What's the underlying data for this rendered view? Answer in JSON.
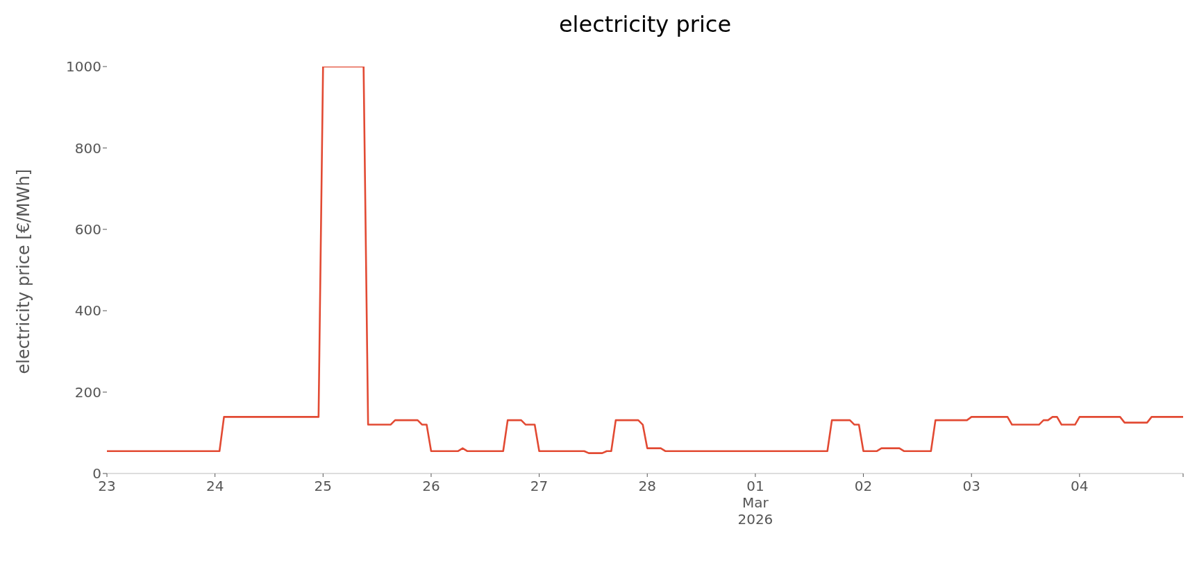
{
  "chart_data": {
    "type": "line",
    "title": "electricity price",
    "ylabel": "electricity price [€/MWh]",
    "x": [
      "2026-02-23T00:00",
      "2026-02-24T01:00",
      "2026-02-24T02:00",
      "2026-02-24T23:00",
      "2026-02-25T00:00",
      "2026-02-25T09:00",
      "2026-02-25T10:00",
      "2026-02-25T15:00",
      "2026-02-25T16:00",
      "2026-02-25T21:00",
      "2026-02-25T22:00",
      "2026-02-25T23:00",
      "2026-02-26T00:00",
      "2026-02-26T06:00",
      "2026-02-26T07:00",
      "2026-02-26T08:00",
      "2026-02-26T16:00",
      "2026-02-26T17:00",
      "2026-02-26T20:00",
      "2026-02-26T21:00",
      "2026-02-26T23:00",
      "2026-02-27T00:00",
      "2026-02-27T10:00",
      "2026-02-27T11:00",
      "2026-02-27T14:00",
      "2026-02-27T15:00",
      "2026-02-27T16:00",
      "2026-02-27T17:00",
      "2026-02-27T22:00",
      "2026-02-27T23:00",
      "2026-02-28T00:00",
      "2026-02-28T03:00",
      "2026-02-28T04:00",
      "2026-03-01T16:00",
      "2026-03-01T17:00",
      "2026-03-01T21:00",
      "2026-03-01T22:00",
      "2026-03-01T23:00",
      "2026-03-02T00:00",
      "2026-03-02T03:00",
      "2026-03-02T04:00",
      "2026-03-02T08:00",
      "2026-03-02T09:00",
      "2026-03-02T15:00",
      "2026-03-02T16:00",
      "2026-03-02T23:00",
      "2026-03-03T00:00",
      "2026-03-03T08:00",
      "2026-03-03T09:00",
      "2026-03-03T15:00",
      "2026-03-03T16:00",
      "2026-03-03T17:00",
      "2026-03-03T18:00",
      "2026-03-03T19:00",
      "2026-03-03T20:00",
      "2026-03-03T23:00",
      "2026-03-04T00:00",
      "2026-03-04T09:00",
      "2026-03-04T10:00",
      "2026-03-04T15:00",
      "2026-03-04T16:00",
      "2026-03-04T23:00"
    ],
    "series": [
      {
        "color": "#e24a33",
        "values": [
          55,
          55,
          139,
          139,
          1000,
          1000,
          120,
          120,
          131,
          131,
          120,
          120,
          55,
          55,
          62,
          55,
          55,
          131,
          131,
          120,
          120,
          55,
          55,
          50,
          50,
          55,
          55,
          131,
          131,
          120,
          62,
          62,
          55,
          55,
          131,
          131,
          120,
          120,
          55,
          55,
          62,
          62,
          55,
          55,
          131,
          131,
          139,
          139,
          120,
          120,
          131,
          131,
          139,
          139,
          120,
          120,
          139,
          139,
          125,
          125,
          139,
          139
        ]
      }
    ],
    "xlim": [
      "2026-02-23T00:00",
      "2026-03-04T23:00"
    ],
    "xticks": [
      {
        "value": "2026-02-23",
        "label": "23"
      },
      {
        "value": "2026-02-24",
        "label": "24"
      },
      {
        "value": "2026-02-25",
        "label": "25"
      },
      {
        "value": "2026-02-26",
        "label": "26"
      },
      {
        "value": "2026-02-27",
        "label": "27"
      },
      {
        "value": "2026-02-28",
        "label": "28"
      },
      {
        "value": "2026-03-01",
        "label": "01\nMar\n2026"
      },
      {
        "value": "2026-03-02",
        "label": "02"
      },
      {
        "value": "2026-03-03",
        "label": "03"
      },
      {
        "value": "2026-03-04",
        "label": "04"
      },
      {
        "value": "2026-03-04T23:00",
        "label": null
      }
    ],
    "ylim": [
      0,
      1000
    ],
    "yticks": [
      0,
      200,
      400,
      600,
      800,
      1000
    ],
    "grid": false,
    "legend": false,
    "marker": "none",
    "line_style": "solid"
  }
}
